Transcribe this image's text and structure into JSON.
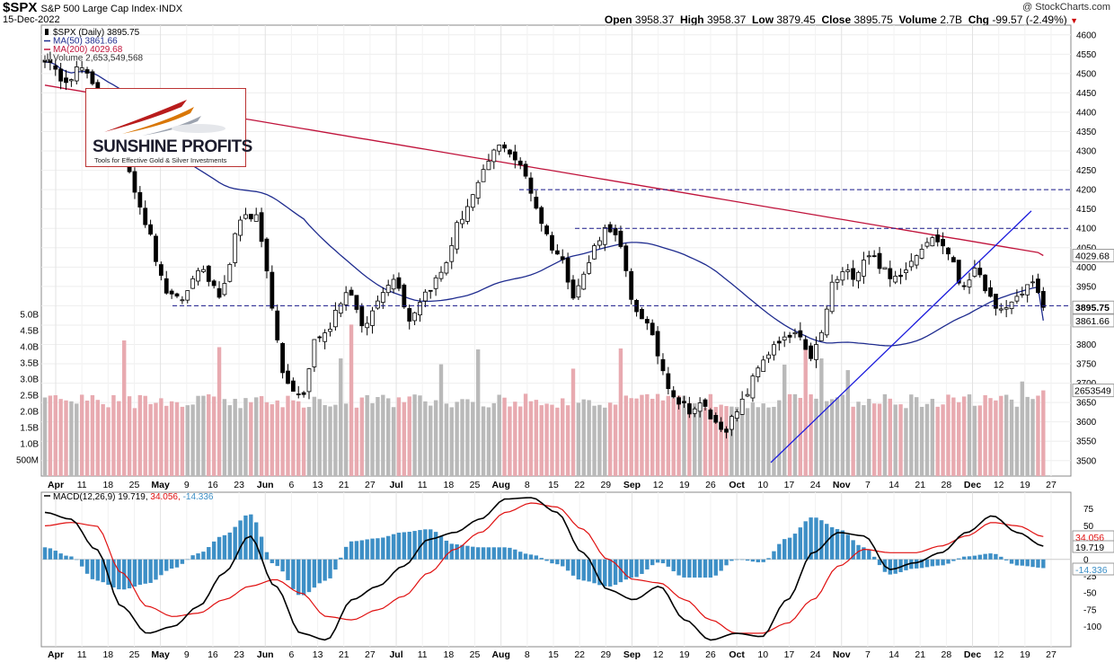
{
  "header": {
    "symbol": "$SPX",
    "name": "S&P 500 Large Cap Index",
    "exchange": "INDX",
    "date": "15-Dec-2022",
    "copyright": "@ StockCharts.com",
    "quote": {
      "open_label": "Open",
      "open": "3958.37",
      "high_label": "High",
      "high": "3958.37",
      "low_label": "Low",
      "low": "3879.45",
      "close_label": "Close",
      "close": "3895.75",
      "volume_label": "Volume",
      "volume": "2.7B",
      "chg_label": "Chg",
      "chg": "-99.57 (-2.49%)",
      "chg_arrow": "▼"
    }
  },
  "legend": [
    {
      "text": "$SPX (Daily) 3895.75",
      "color": "#000000",
      "marker": "candle"
    },
    {
      "text": "MA(50) 3861.66",
      "color": "#1f2c8f",
      "marker": "line"
    },
    {
      "text": "MA(200) 4029.68",
      "color": "#c0143c",
      "marker": "line"
    },
    {
      "text": "Volume 2,653,549,568",
      "color": "#888888",
      "marker": "bars"
    }
  ],
  "logo": {
    "title": "SUNSHINE PROFITS",
    "tagline": "Tools for Effective Gold & Silver Investments"
  },
  "colors": {
    "ma50": "#1f2c8f",
    "ma200": "#c0143c",
    "trendline": "#1a1adc",
    "dashed": "#1a1a8c",
    "vol_up": "#b9b9b9",
    "vol_down": "#e8aab0",
    "macd_line": "#000000",
    "signal_line": "#e01010",
    "histogram": "#3d8fc6"
  },
  "chart_data": [
    {
      "type": "candlestick",
      "title": "$SPX (Daily) 3895.75",
      "ylim": [
        3460,
        4625
      ],
      "y_ticks": [
        3500,
        3550,
        3600,
        3650,
        3700,
        3750,
        3800,
        3850,
        3900,
        3950,
        4000,
        4050,
        4100,
        4150,
        4200,
        4250,
        4300,
        4350,
        4400,
        4450,
        4500,
        4550,
        4600
      ],
      "y_tick_labels": [
        "3500",
        "3550",
        "3600",
        "3650",
        "3700",
        "3750",
        "3800",
        "",
        "",
        "3950",
        "4000",
        "4050",
        "4100",
        "4150",
        "4200",
        "4250",
        "4300",
        "4350",
        "4400",
        "4450",
        "4500",
        "4550",
        "4600"
      ],
      "x_labels": [
        "Apr",
        "11",
        "18",
        "25",
        "May",
        "9",
        "16",
        "23",
        "Jun",
        "6",
        "13",
        "21",
        "27",
        "Jul",
        "11",
        "18",
        "25",
        "Aug",
        "8",
        "15",
        "22",
        "29",
        "Sep",
        "12",
        "19",
        "26",
        "Oct",
        "10",
        "17",
        "24",
        "Nov",
        "7",
        "14",
        "21",
        "28",
        "Dec",
        "12",
        "19",
        "27"
      ],
      "x_label_bold": [
        "Apr",
        "May",
        "Jun",
        "Jul",
        "Aug",
        "Sep",
        "Oct",
        "Nov",
        "Dec"
      ],
      "price_path": [
        4540,
        4495,
        4488,
        4520,
        4470,
        4395,
        4360,
        4270,
        4170,
        4075,
        3955,
        3910,
        3925,
        4000,
        3965,
        3900,
        4060,
        4140,
        4130,
        3980,
        3750,
        3675,
        3665,
        3820,
        3825,
        3910,
        3945,
        3835,
        3890,
        3960,
        3970,
        3860,
        3920,
        3955,
        3995,
        4100,
        4160,
        4215,
        4290,
        4320,
        4280,
        4230,
        4140,
        4060,
        4020,
        3930,
        3985,
        4070,
        4110,
        4050,
        3900,
        3870,
        3790,
        3700,
        3650,
        3630,
        3645,
        3595,
        3585,
        3625,
        3690,
        3760,
        3790,
        3810,
        3830,
        3760,
        3810,
        3955,
        3985,
        3980,
        4040,
        4010,
        3965,
        3990,
        4030,
        4070,
        4070,
        4035,
        3945,
        3990,
        3955,
        3880,
        3900,
        3930,
        3965,
        3895
      ],
      "resistance_levels": [
        4200,
        4100
      ],
      "support_level": 3900,
      "trendline": {
        "from_date_label": "10",
        "from": 3495,
        "to": 4145
      },
      "price_labels": [
        {
          "value": "4029.68",
          "kind": "ma200"
        },
        {
          "value": "3895.75",
          "kind": "close"
        },
        {
          "value": "3861.66",
          "kind": "ma50"
        }
      ],
      "ma50_last": 3861.66,
      "ma200_last": 4029.68
    },
    {
      "type": "bar",
      "title": "Volume 2,653,549,568",
      "ylim": [
        0,
        5.0
      ],
      "y_ticks": [
        0.5,
        1.0,
        1.5,
        2.0,
        2.5,
        3.0,
        3.5,
        4.0,
        4.5,
        5.0
      ],
      "y_tick_labels": [
        "500M",
        "1.0B",
        "1.5B",
        "2.0B",
        "2.5B",
        "3.0B",
        "3.5B",
        "4.0B",
        "4.5B",
        "5.0B"
      ],
      "last_label": "2653549",
      "last_value": 2.65
    },
    {
      "type": "line",
      "title": "MACD(12,26,9)",
      "legend": [
        {
          "text": "MACD(12,26,9)",
          "value": "19.719",
          "color": "#000000"
        },
        {
          "text": "",
          "value": "34.056",
          "color": "#e01010"
        },
        {
          "text": "",
          "value": "-14.336",
          "color": "#3d8fc6"
        }
      ],
      "ylim": [
        -130,
        100
      ],
      "y_ticks": [
        75,
        50,
        25,
        0,
        -25,
        -50,
        -75,
        -100
      ],
      "y_tick_labels": [
        "75",
        "50",
        "25",
        "0",
        "-25",
        "-50",
        "-75",
        "-100"
      ],
      "macd_path": [
        70,
        60,
        15,
        -70,
        -110,
        -100,
        -70,
        -20,
        35,
        -40,
        -110,
        -120,
        -60,
        -40,
        -10,
        30,
        40,
        60,
        90,
        92,
        70,
        10,
        -45,
        -60,
        -40,
        -90,
        -120,
        -110,
        -115,
        -60,
        10,
        40,
        35,
        -15,
        -5,
        10,
        40,
        65,
        40,
        20
      ],
      "signal_path": [
        50,
        55,
        50,
        -20,
        -70,
        -85,
        -80,
        -60,
        -40,
        -30,
        -50,
        -85,
        -90,
        -75,
        -55,
        -20,
        15,
        40,
        70,
        84,
        78,
        45,
        0,
        -30,
        -35,
        -60,
        -90,
        -110,
        -110,
        -95,
        -60,
        -10,
        15,
        10,
        10,
        20,
        35,
        55,
        50,
        34
      ],
      "last_values": {
        "macd": "19.719",
        "signal": "34.056",
        "histogram": "-14.336"
      }
    }
  ]
}
